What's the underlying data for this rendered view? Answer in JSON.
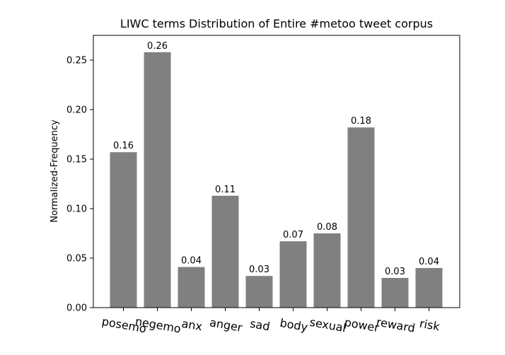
{
  "chart_data": {
    "type": "bar",
    "title": "LIWC terms Distribution of Entire #metoo tweet corpus",
    "xlabel": "",
    "ylabel": "Normalized-Frequency",
    "categories": [
      "posemo",
      "negemo",
      "anx",
      "anger",
      "sad",
      "body",
      "sexual",
      "power",
      "reward",
      "risk"
    ],
    "values": [
      0.157,
      0.258,
      0.041,
      0.113,
      0.032,
      0.067,
      0.075,
      0.182,
      0.03,
      0.04
    ],
    "data_labels": [
      "0.16",
      "0.26",
      "0.04",
      "0.11",
      "0.03",
      "0.07",
      "0.08",
      "0.18",
      "0.03",
      "0.04"
    ],
    "ylim": [
      0,
      0.275
    ],
    "yticks": [
      0.0,
      0.05,
      0.1,
      0.15,
      0.2,
      0.25
    ],
    "ytick_labels": [
      "0.00",
      "0.05",
      "0.10",
      "0.15",
      "0.20",
      "0.25"
    ],
    "grid": false,
    "bar_color": "#808080"
  }
}
